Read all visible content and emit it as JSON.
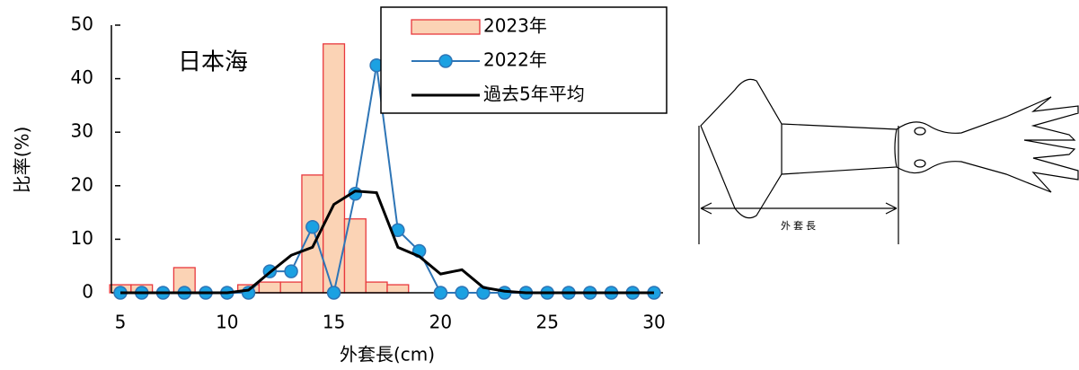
{
  "chart_data": {
    "type": "combo",
    "annotation": "日本海",
    "xlabel": "外套長(cm)",
    "ylabel": "比率(%)",
    "x": [
      5,
      6,
      7,
      8,
      9,
      10,
      11,
      12,
      13,
      14,
      15,
      16,
      17,
      18,
      19,
      20,
      21,
      22,
      23,
      24,
      25,
      26,
      27,
      28,
      29,
      30
    ],
    "series": [
      {
        "name": "2023年",
        "type": "bar",
        "color": "#fbd3b5",
        "edge": "#e8383d",
        "values": [
          1.5,
          1.5,
          0,
          4.7,
          0,
          0,
          1.5,
          2,
          2,
          22,
          46.5,
          13.8,
          2,
          1.5,
          0,
          0,
          0,
          0,
          0,
          0,
          0,
          0,
          0,
          0,
          0,
          0
        ]
      },
      {
        "name": "2022年",
        "type": "line",
        "marker": true,
        "color": "#2e75b6",
        "marker_color": "#1ba1e2",
        "values": [
          0,
          0,
          0,
          0,
          0,
          0,
          0,
          4,
          4,
          12.3,
          0,
          18.5,
          42.5,
          11.7,
          7.8,
          0,
          0,
          0,
          0,
          0,
          0,
          0,
          0,
          0,
          0,
          0
        ]
      },
      {
        "name": "過去5年平均",
        "type": "line",
        "marker": false,
        "color": "#000000",
        "values": [
          0,
          0,
          0,
          0,
          0,
          0,
          0.5,
          3.8,
          7,
          8.5,
          16.5,
          19,
          18.7,
          8.5,
          6.8,
          3.5,
          4.3,
          1,
          0.3,
          0,
          0,
          0,
          0,
          0,
          0,
          0
        ]
      }
    ],
    "xlim": [
      5,
      30
    ],
    "xticks": [
      5,
      10,
      15,
      20,
      25,
      30
    ],
    "ylim": [
      0,
      50
    ],
    "yticks": [
      0,
      10,
      20,
      30,
      40,
      50
    ],
    "legend": "top-right"
  },
  "diagram": {
    "label": "外套長"
  }
}
